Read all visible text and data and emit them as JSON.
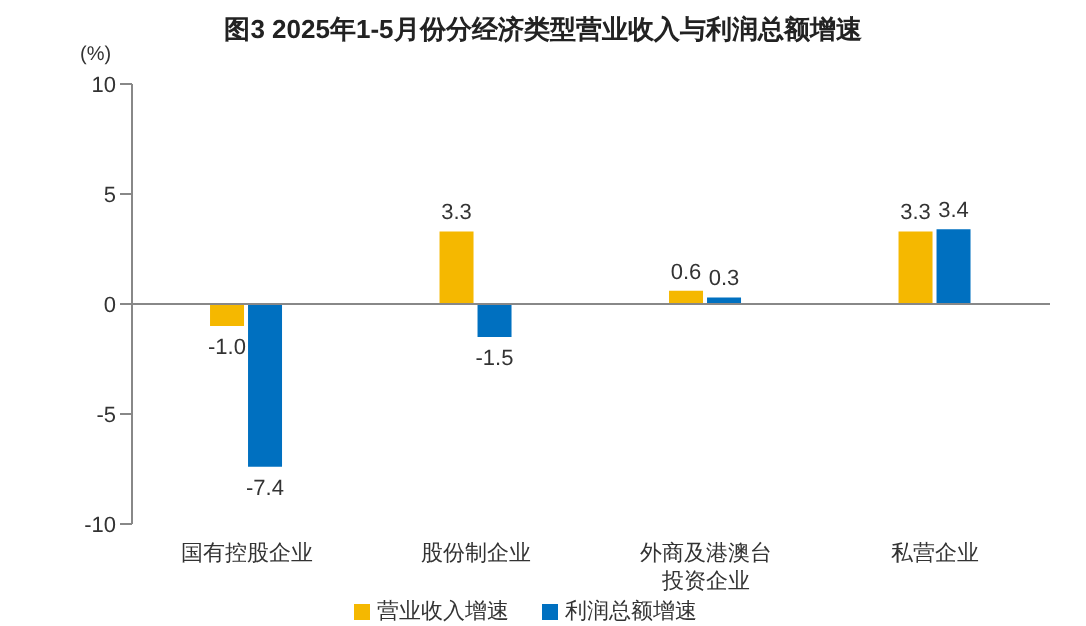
{
  "chart_data": {
    "type": "bar",
    "title": "图3  2025年1-5月份分经济类型营业收入与利润总额增速",
    "ylabel": "(%)",
    "categories": [
      "国有控股企业",
      "股份制企业",
      "外商及港澳台投资企业",
      "私营企业"
    ],
    "series": [
      {
        "name": "营业收入增速",
        "color": "#f5b800",
        "values": [
          -1.0,
          3.3,
          0.6,
          3.3
        ],
        "value_labels": [
          "-1.0",
          "3.3",
          "0.6",
          "3.3"
        ]
      },
      {
        "name": "利润总额增速",
        "color": "#0070c0",
        "values": [
          -7.4,
          -1.5,
          0.3,
          3.4
        ],
        "value_labels": [
          "-7.4",
          "-1.5",
          "0.3",
          "3.4"
        ]
      }
    ],
    "ylim": [
      -10,
      10
    ],
    "yticks": [
      -10,
      -5,
      0,
      5,
      10
    ],
    "legend": "bottom"
  }
}
